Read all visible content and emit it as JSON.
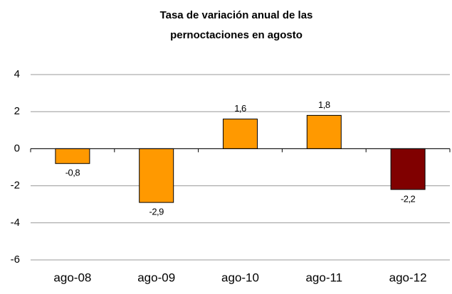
{
  "chart_data": {
    "type": "bar",
    "title": [
      "Tasa de variación anual de las",
      "pernoctaciones en agosto"
    ],
    "categories": [
      "ago-08",
      "ago-09",
      "ago-10",
      "ago-11",
      "ago-12"
    ],
    "values": [
      -0.8,
      -2.9,
      1.6,
      1.8,
      -2.2
    ],
    "value_labels": [
      "-0,8",
      "-2,9",
      "1,6",
      "1,8",
      "-2,2"
    ],
    "colors": [
      "#ff9900",
      "#ff9900",
      "#ff9900",
      "#ff9900",
      "#800000"
    ],
    "ylim": [
      -6,
      4
    ],
    "yticks": [
      4,
      2,
      0,
      -2,
      -4,
      -6
    ],
    "grid": true
  }
}
